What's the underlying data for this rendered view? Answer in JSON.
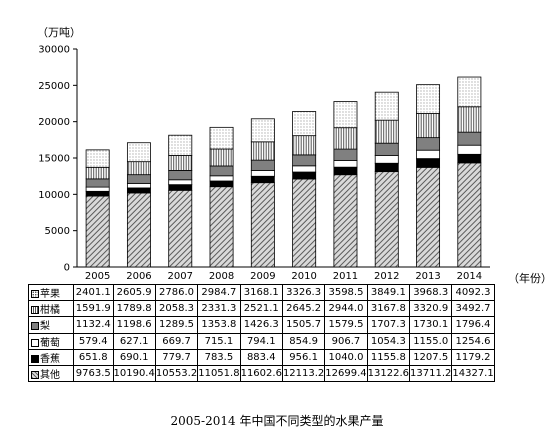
{
  "y_unit": "（万吨）",
  "x_unit": "（年份）",
  "caption": "2005-2014 年中国不同类型的水果产量",
  "colors": {
    "pear": "#808080",
    "banana": "#000000",
    "grape": "#ffffff"
  },
  "chart_data": {
    "type": "bar",
    "stacked": true,
    "categories": [
      "2005",
      "2006",
      "2007",
      "2008",
      "2009",
      "2010",
      "2011",
      "2012",
      "2013",
      "2014"
    ],
    "ylim": [
      0,
      30000
    ],
    "yticks": [
      "0",
      "5000",
      "10000",
      "15000",
      "20000",
      "25000",
      "30000"
    ],
    "series": [
      {
        "name": "其他",
        "key": "other",
        "values": [
          9763.5,
          10190.4,
          10553.2,
          11051.8,
          11602.6,
          12113.2,
          12699.4,
          13122.6,
          13711.2,
          14327.1
        ]
      },
      {
        "name": "香蕉",
        "key": "banana",
        "values": [
          651.8,
          690.1,
          779.7,
          783.5,
          883.4,
          956.1,
          1040.0,
          1155.8,
          1207.5,
          1179.2
        ]
      },
      {
        "name": "葡萄",
        "key": "grape",
        "values": [
          579.4,
          627.1,
          669.7,
          715.1,
          794.1,
          854.9,
          906.7,
          1054.3,
          1155.0,
          1254.6
        ]
      },
      {
        "name": "梨",
        "key": "pear",
        "values": [
          1132.4,
          1198.6,
          1289.5,
          1353.8,
          1426.3,
          1505.7,
          1579.5,
          1707.3,
          1730.1,
          1796.4
        ]
      },
      {
        "name": "柑橘",
        "key": "citrus",
        "values": [
          1591.9,
          1789.8,
          2058.3,
          2331.3,
          2521.1,
          2645.2,
          2944.0,
          3167.8,
          3320.9,
          3492.7
        ]
      },
      {
        "name": "苹果",
        "key": "apple",
        "values": [
          2401.1,
          2605.9,
          2786.0,
          2984.7,
          3168.1,
          3326.3,
          3598.5,
          3849.1,
          3968.3,
          4092.3
        ]
      }
    ],
    "table_rows": [
      {
        "label": "苹果",
        "key": "apple",
        "cells": [
          "2401.1",
          "2605.9",
          "2786.0",
          "2984.7",
          "3168.1",
          "3326.3",
          "3598.5",
          "3849.1",
          "3968.3",
          "4092.3"
        ]
      },
      {
        "label": "柑橘",
        "key": "citrus",
        "cells": [
          "1591.9",
          "1789.8",
          "2058.3",
          "2331.3",
          "2521.1",
          "2645.2",
          "2944.0",
          "3167.8",
          "3320.9",
          "3492.7"
        ]
      },
      {
        "label": "梨",
        "key": "pear",
        "cells": [
          "1132.4",
          "1198.6",
          "1289.5",
          "1353.8",
          "1426.3",
          "1505.7",
          "1579.5",
          "1707.3",
          "1730.1",
          "1796.4"
        ]
      },
      {
        "label": "葡萄",
        "key": "grape",
        "cells": [
          "579.4",
          "627.1",
          "669.7",
          "715.1",
          "794.1",
          "854.9",
          "906.7",
          "1054.3",
          "1155.0",
          "1254.6"
        ]
      },
      {
        "label": "香蕉",
        "key": "banana",
        "cells": [
          "651.8",
          "690.1",
          "779.7",
          "783.5",
          "883.4",
          "956.1",
          "1040.0",
          "1155.8",
          "1207.5",
          "1179.2"
        ]
      },
      {
        "label": "其他",
        "key": "other",
        "cells": [
          "9763.5",
          "10190.4",
          "10553.2",
          "11051.8",
          "11602.6",
          "12113.2",
          "12699.4",
          "13122.6",
          "13711.2",
          "14327.1"
        ]
      }
    ],
    "legend_position": "left-table"
  }
}
